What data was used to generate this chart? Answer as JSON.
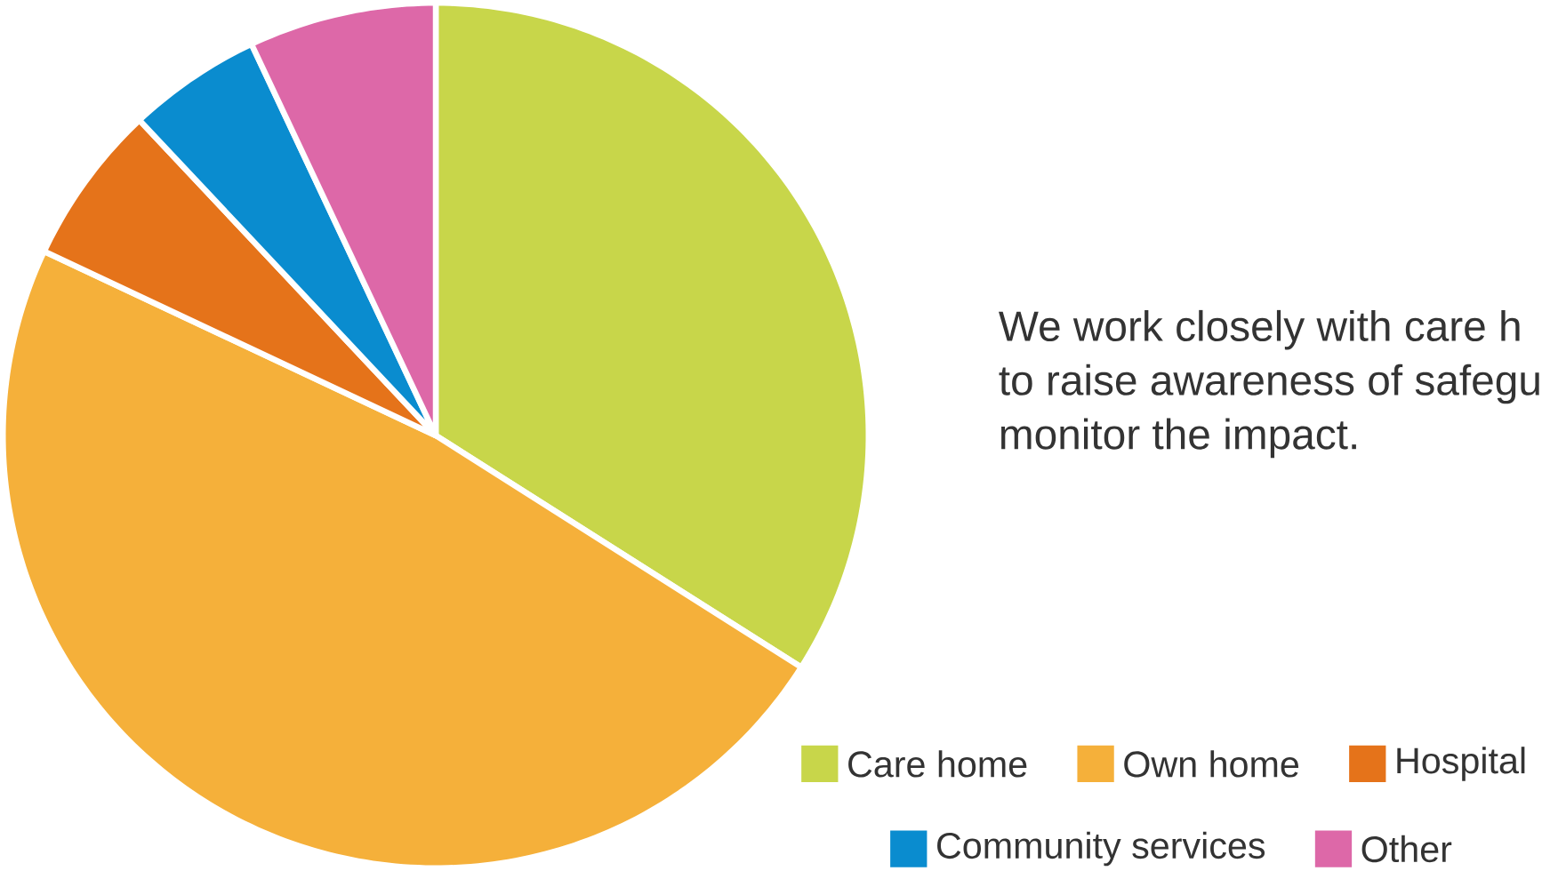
{
  "chart_data": {
    "type": "pie",
    "categories": [
      "Care home",
      "Own home",
      "Hospital",
      "Community services",
      "Other"
    ],
    "values": [
      34,
      48,
      6,
      5,
      7
    ],
    "colors": [
      "#c8d64a",
      "#f5b03a",
      "#e5731a",
      "#0a8ccf",
      "#dd68a8"
    ],
    "legend": "bottom",
    "annotations": [
      "We work closely with care h",
      "to raise awareness of safegu",
      "monitor the impact."
    ]
  }
}
